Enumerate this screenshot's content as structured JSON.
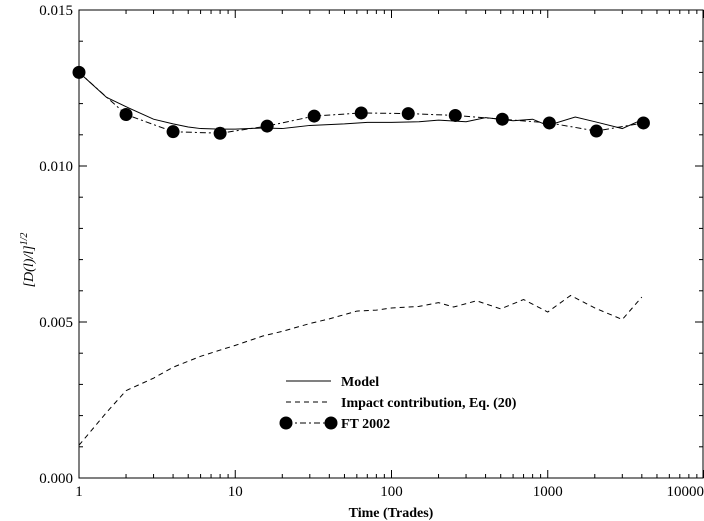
{
  "chart_data": {
    "type": "line",
    "xlabel": "Time (Trades)",
    "ylabel": "[D(l)/l]",
    "ylabel_superscript": "1/2",
    "x_scale": "log",
    "xlim": [
      1,
      10000
    ],
    "ylim": [
      0,
      0.015
    ],
    "x_ticks": [
      1,
      10,
      100,
      1000,
      10000
    ],
    "x_tick_labels": [
      "1",
      "10",
      "100",
      "1000",
      "10000"
    ],
    "y_ticks": [
      0,
      0.005,
      0.01,
      0.015
    ],
    "y_tick_labels": [
      "0.000",
      "0.005",
      "0.010",
      "0.015"
    ],
    "grid": false,
    "legend_position": "bottom-center",
    "series": [
      {
        "name": "Model",
        "style": "solid",
        "x": [
          1,
          1.5,
          2,
          3,
          4,
          5,
          6,
          8,
          10,
          15,
          20,
          30,
          50,
          70,
          100,
          150,
          200,
          300,
          400,
          600,
          800,
          1000,
          1500,
          2000,
          3000,
          4000
        ],
        "y": [
          0.013,
          0.0122,
          0.0119,
          0.0115,
          0.01135,
          0.01125,
          0.0112,
          0.01118,
          0.01118,
          0.01122,
          0.0112,
          0.0113,
          0.01135,
          0.0114,
          0.0114,
          0.01142,
          0.01147,
          0.01142,
          0.01155,
          0.01145,
          0.0115,
          0.0113,
          0.01157,
          0.01142,
          0.0112,
          0.01148
        ]
      },
      {
        "name": "Impact contribution, Eq. (20)",
        "style": "dashed",
        "x": [
          1,
          1.5,
          2,
          3,
          4,
          6,
          8,
          10,
          15,
          20,
          30,
          40,
          60,
          80,
          100,
          150,
          200,
          250,
          350,
          500,
          700,
          1000,
          1400,
          2000,
          3000,
          4000
        ],
        "y": [
          0.00105,
          0.0021,
          0.0028,
          0.0032,
          0.00355,
          0.0039,
          0.0041,
          0.00425,
          0.00455,
          0.0047,
          0.00495,
          0.0051,
          0.00535,
          0.00538,
          0.00545,
          0.0055,
          0.00562,
          0.00548,
          0.00568,
          0.00542,
          0.00572,
          0.00532,
          0.00585,
          0.00545,
          0.00508,
          0.0058
        ]
      },
      {
        "name": "FT 2002",
        "style": "dashdot-markers",
        "x": [
          1,
          2,
          4,
          8,
          16,
          32,
          64,
          128,
          256,
          512,
          1024,
          2048,
          4096
        ],
        "y": [
          0.013,
          0.01165,
          0.0111,
          0.01105,
          0.01128,
          0.0116,
          0.0117,
          0.01168,
          0.01162,
          0.0115,
          0.01138,
          0.01112,
          0.01138
        ]
      }
    ]
  }
}
